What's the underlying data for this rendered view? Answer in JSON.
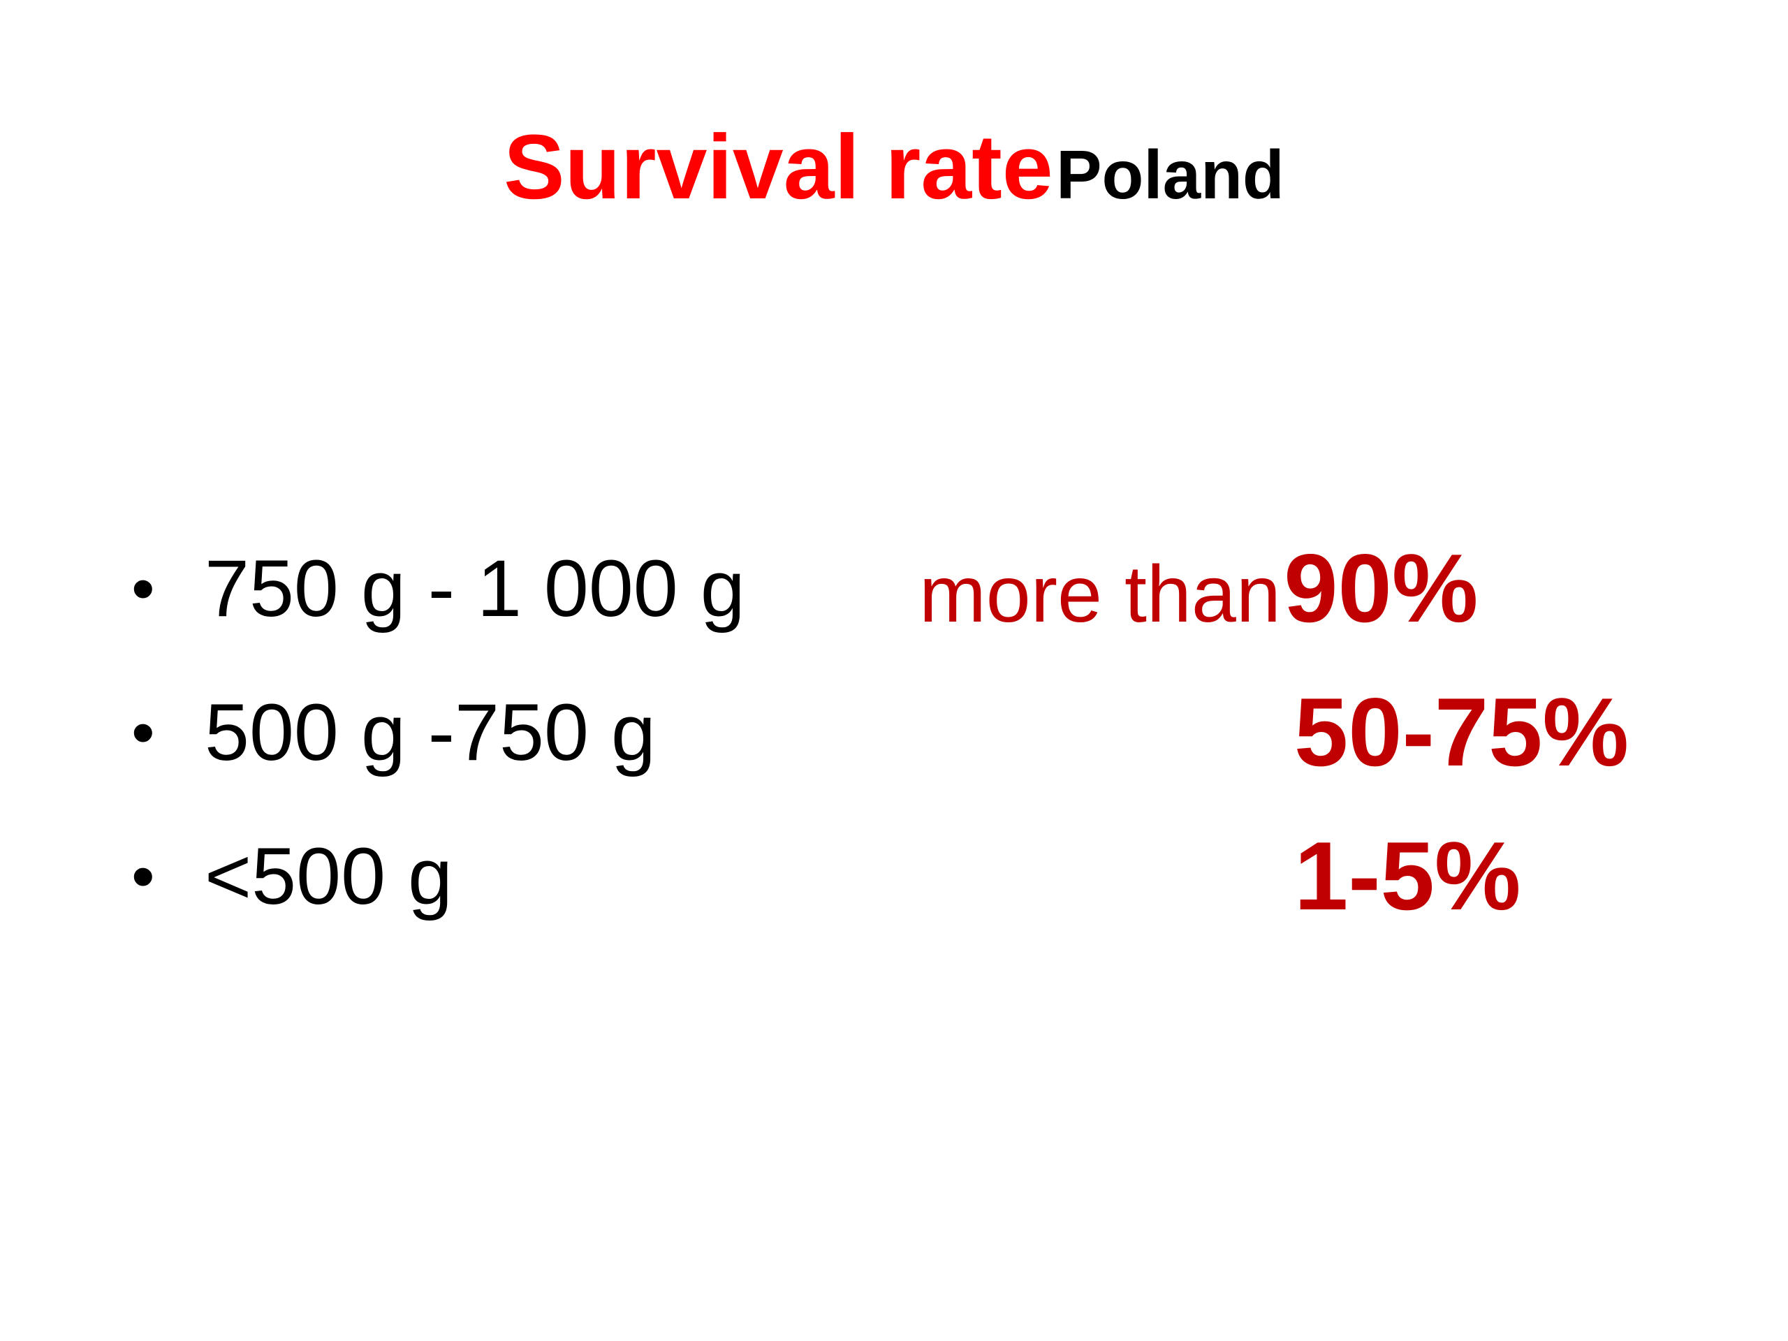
{
  "slide": {
    "title": {
      "main": "Survival rate",
      "sub": "Poland"
    },
    "bullet_symbol": "•",
    "rows": [
      {
        "label": "750 g - 1 000 g",
        "value_prefix": "more than",
        "value": "90%"
      },
      {
        "label": "500 g -750 g",
        "value_prefix": "",
        "value": "50-75%"
      },
      {
        "label": "<500 g",
        "value_prefix": "",
        "value": "1-5%"
      }
    ]
  },
  "colors": {
    "title_accent": "#ff0000",
    "value_accent": "#c00000",
    "text": "#000000",
    "background": "#ffffff"
  }
}
